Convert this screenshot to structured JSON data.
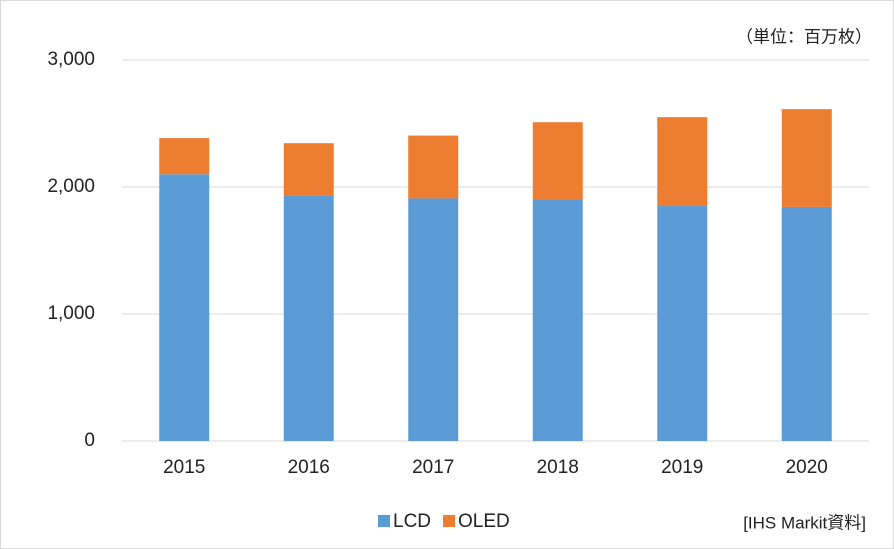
{
  "chart_data": {
    "type": "stacked_bar",
    "unit_note": "（単位：百万枚）",
    "source_note": "[IHS Markit資料]",
    "categories": [
      "2015",
      "2016",
      "2017",
      "2018",
      "2019",
      "2020"
    ],
    "series": [
      {
        "name": "LCD",
        "color": "#5b9bd5",
        "values": [
          2100,
          1935,
          1910,
          1905,
          1850,
          1843
        ]
      },
      {
        "name": "OLED",
        "color": "#ed7d31",
        "values": [
          285,
          410,
          495,
          605,
          700,
          770
        ]
      }
    ],
    "ylim": [
      0,
      3000
    ],
    "yticks": [
      0,
      {
        "value": 1000,
        "label": "1,000"
      },
      {
        "value": 2000,
        "label": "2,000"
      },
      {
        "value": 3000,
        "label": "3,000"
      }
    ],
    "grid": true,
    "legend": "bottom"
  }
}
